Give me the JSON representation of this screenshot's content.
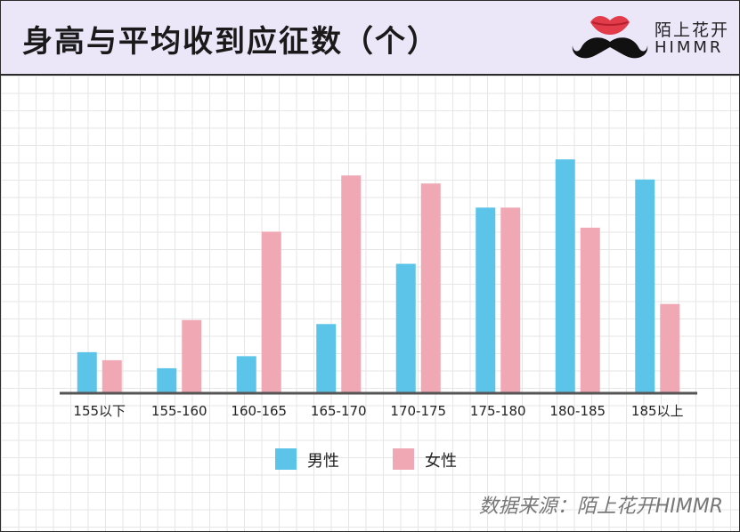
{
  "header": {
    "title": "身高与平均收到应征数（个）",
    "logo_cn": "陌上花开",
    "logo_en": "HIMMR"
  },
  "colors": {
    "male": "#5bc4e8",
    "female": "#f0a8b4",
    "header_bg": "#ebe6f8",
    "baseline": "#555555"
  },
  "legend": {
    "male": "男性",
    "female": "女性"
  },
  "source": "数据来源：陌上花开HIMMR",
  "chart_data": {
    "type": "bar",
    "title": "身高与平均收到应征数（个）",
    "xlabel": "",
    "ylabel": "",
    "categories": [
      "155以下",
      "155-160",
      "160-165",
      "165-170",
      "170-175",
      "175-180",
      "180-185",
      "185以上"
    ],
    "series": [
      {
        "name": "男性",
        "values": [
          0.5,
          0.3,
          0.45,
          0.85,
          1.6,
          2.3,
          2.9,
          2.65
        ]
      },
      {
        "name": "女性",
        "values": [
          0.4,
          0.9,
          2.0,
          2.7,
          2.6,
          2.3,
          2.05,
          1.1
        ]
      }
    ],
    "ylim": [
      0,
      3.5
    ],
    "grid": true,
    "legend_position": "bottom"
  }
}
